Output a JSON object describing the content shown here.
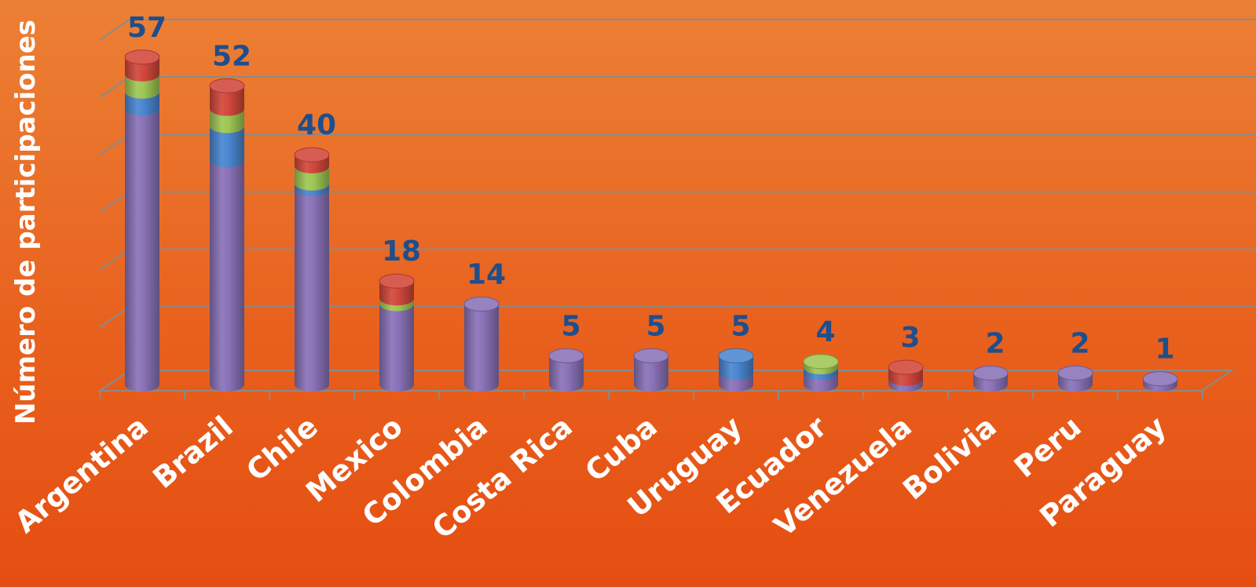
{
  "chart_data": {
    "type": "bar",
    "stacked": true,
    "title": "",
    "xlabel": "",
    "ylabel": "Número de participaciones",
    "ylim": [
      0,
      60
    ],
    "grid": true,
    "legend": "none",
    "categories": [
      "Argentina",
      "Brazil",
      "Chile",
      "Mexico",
      "Colombia",
      "Costa Rica",
      "Cuba",
      "Uruguay",
      "Ecuador",
      "Venezuela",
      "Bolivia",
      "Peru",
      "Paraguay"
    ],
    "totals": [
      57,
      52,
      40,
      18,
      14,
      5,
      5,
      5,
      4,
      3,
      2,
      2,
      1
    ],
    "series": [
      {
        "color": "#8a72b8",
        "values": [
          48,
          39,
          34,
          14,
          14,
          5,
          5,
          2,
          2,
          1,
          2,
          2,
          1
        ]
      },
      {
        "color": "#4a86d0",
        "values": [
          3,
          6,
          1,
          0,
          0,
          0,
          0,
          3,
          1,
          0,
          0,
          0,
          0
        ]
      },
      {
        "color": "#9ec654",
        "values": [
          3,
          3,
          3,
          1,
          0,
          0,
          0,
          0,
          1,
          0,
          0,
          0,
          0
        ]
      },
      {
        "color": "#d2473b",
        "values": [
          3,
          4,
          2,
          3,
          0,
          0,
          0,
          0,
          0,
          2,
          0,
          0,
          0
        ]
      }
    ]
  },
  "colors": {
    "label": "#1f4e8c",
    "axis_text": "#ffffff",
    "grid": "#8a8a8a"
  }
}
